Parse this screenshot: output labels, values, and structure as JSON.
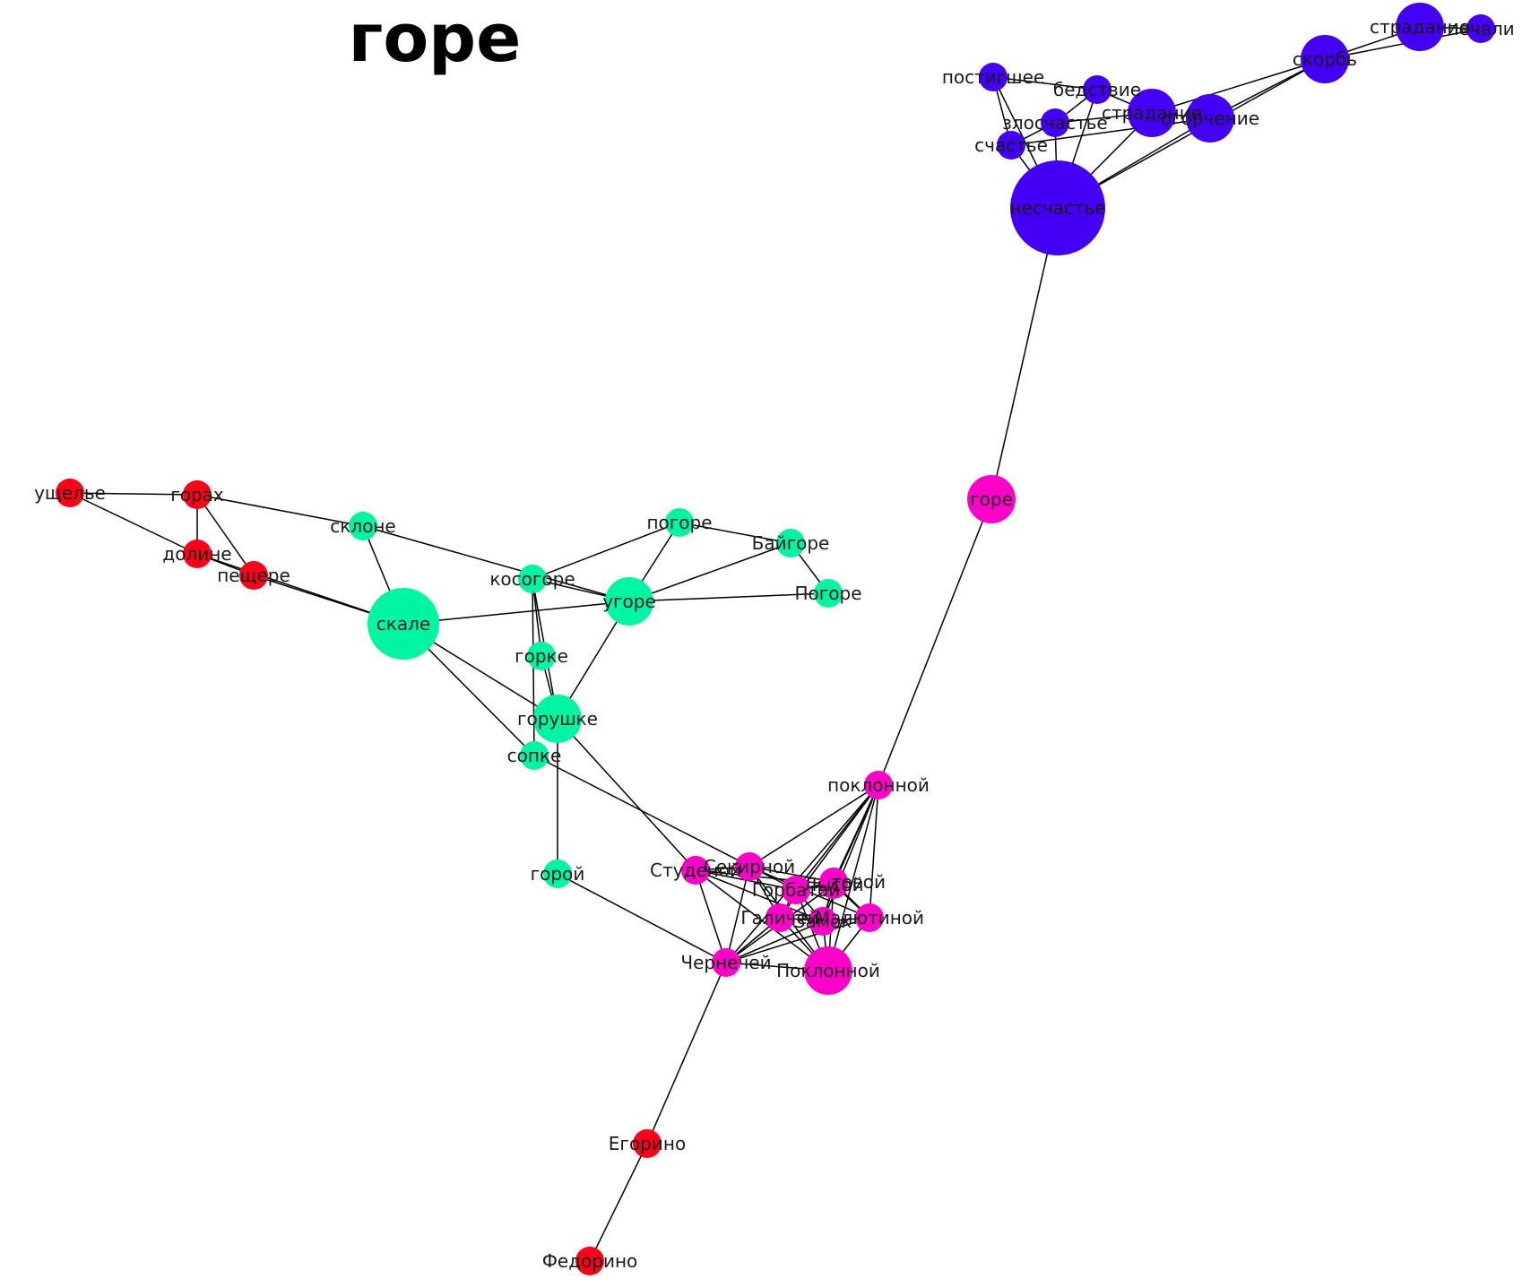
{
  "title": "горе",
  "colors": {
    "purple": "#4400f5",
    "magenta": "#ff00c8",
    "green": "#00f5a3",
    "red": "#ff0018",
    "edge": "#000000"
  },
  "nodes": [
    {
      "id": "nes",
      "label": "несчастье",
      "group": "purple",
      "size": "xl"
    },
    {
      "id": "skorb",
      "label": "скорбь",
      "group": "purple",
      "size": "m"
    },
    {
      "id": "stradanie1",
      "label": "страдание",
      "group": "purple",
      "size": "m"
    },
    {
      "id": "pechali",
      "label": "печали",
      "group": "purple",
      "size": "s"
    },
    {
      "id": "postigshee",
      "label": "постигшее",
      "group": "purple",
      "size": "s"
    },
    {
      "id": "bedstvie",
      "label": "бедствие",
      "group": "purple",
      "size": "s"
    },
    {
      "id": "stradanie2",
      "label": "страдание",
      "group": "purple",
      "size": "m"
    },
    {
      "id": "ogorchenie",
      "label": "огорчение",
      "group": "purple",
      "size": "m"
    },
    {
      "id": "zloschastie",
      "label": "злосчастье",
      "group": "purple",
      "size": "s"
    },
    {
      "id": "schastie",
      "label": "счастье",
      "group": "purple",
      "size": "s"
    },
    {
      "id": "gore",
      "label": "горе",
      "group": "magenta",
      "size": "m"
    },
    {
      "id": "poklonnoy1",
      "label": "поклонной",
      "group": "magenta",
      "size": "s"
    },
    {
      "id": "studenoy",
      "label": "Студеной",
      "group": "magenta",
      "size": "s"
    },
    {
      "id": "sekirnoy",
      "label": "Секирной",
      "group": "magenta",
      "size": "s"
    },
    {
      "id": "gorbatoy",
      "label": "Горбатой",
      "group": "magenta",
      "size": "s"
    },
    {
      "id": "lysoy",
      "label": "Лысой",
      "group": "magenta",
      "size": "s"
    },
    {
      "id": "tovoy",
      "label": "...товой",
      "group": "magenta",
      "size": "s"
    },
    {
      "id": "galich",
      "label": "Галичей",
      "group": "magenta",
      "size": "s"
    },
    {
      "id": "zamok",
      "label": "Замок",
      "group": "magenta",
      "size": "s"
    },
    {
      "id": "malyutinoy",
      "label": "Малютиной",
      "group": "magenta",
      "size": "s"
    },
    {
      "id": "chernechey",
      "label": "Чернечей",
      "group": "magenta",
      "size": "s"
    },
    {
      "id": "poklonnoy2",
      "label": "Поклонной",
      "group": "magenta",
      "size": "m"
    },
    {
      "id": "ushchelie",
      "label": "ущелье",
      "group": "red",
      "size": "s"
    },
    {
      "id": "gorah",
      "label": "горах",
      "group": "red",
      "size": "s"
    },
    {
      "id": "doline",
      "label": "долине",
      "group": "red",
      "size": "s"
    },
    {
      "id": "peshchere",
      "label": "пещере",
      "group": "red",
      "size": "s"
    },
    {
      "id": "egorino",
      "label": "Егорино",
      "group": "red",
      "size": "s"
    },
    {
      "id": "fedorino",
      "label": "Федорино",
      "group": "red",
      "size": "s"
    },
    {
      "id": "sklone",
      "label": "склоне",
      "group": "green",
      "size": "s"
    },
    {
      "id": "skale",
      "label": "скале",
      "group": "green",
      "size": "l"
    },
    {
      "id": "kosogore",
      "label": "косогоре",
      "group": "green",
      "size": "s"
    },
    {
      "id": "pogore",
      "label": "погоре",
      "group": "green",
      "size": "s"
    },
    {
      "id": "baygore",
      "label": "Байгоре",
      "group": "green",
      "size": "s"
    },
    {
      "id": "ugore",
      "label": "угоре",
      "group": "green",
      "size": "m"
    },
    {
      "id": "pogore2",
      "label": "Погоре",
      "group": "green",
      "size": "s"
    },
    {
      "id": "gorke",
      "label": "горке",
      "group": "green",
      "size": "s"
    },
    {
      "id": "gorushke",
      "label": "горушке",
      "group": "green",
      "size": "m"
    },
    {
      "id": "sopke",
      "label": "сопке",
      "group": "green",
      "size": "s"
    },
    {
      "id": "goroy",
      "label": "горой",
      "group": "green",
      "size": "s"
    }
  ],
  "edges": [
    [
      "nes",
      "gore"
    ],
    [
      "nes",
      "skorb"
    ],
    [
      "nes",
      "stradanie2"
    ],
    [
      "nes",
      "ogorchenie"
    ],
    [
      "nes",
      "postigshee"
    ],
    [
      "nes",
      "bedstvie"
    ],
    [
      "nes",
      "zloschastie"
    ],
    [
      "nes",
      "schastie"
    ],
    [
      "skorb",
      "stradanie1"
    ],
    [
      "skorb",
      "pechali"
    ],
    [
      "stradanie1",
      "pechali"
    ],
    [
      "skorb",
      "ogorchenie"
    ],
    [
      "skorb",
      "stradanie2"
    ],
    [
      "postigshee",
      "bedstvie"
    ],
    [
      "postigshee",
      "schastie"
    ],
    [
      "bedstvie",
      "stradanie2"
    ],
    [
      "bedstvie",
      "zloschastie"
    ],
    [
      "zloschastie",
      "schastie"
    ],
    [
      "zloschastie",
      "stradanie2"
    ],
    [
      "stradanie2",
      "ogorchenie"
    ],
    [
      "schastie",
      "ogorchenie"
    ],
    [
      "gore",
      "poklonnoy1"
    ],
    [
      "poklonnoy1",
      "sekirnoy"
    ],
    [
      "poklonnoy1",
      "gorbatoy"
    ],
    [
      "poklonnoy1",
      "lysoy"
    ],
    [
      "poklonnoy1",
      "tovoy"
    ],
    [
      "poklonnoy1",
      "galich"
    ],
    [
      "poklonnoy1",
      "zamok"
    ],
    [
      "poklonnoy1",
      "malyutinoy"
    ],
    [
      "poklonnoy1",
      "chernechey"
    ],
    [
      "poklonnoy1",
      "poklonnoy2"
    ],
    [
      "studenoy",
      "sekirnoy"
    ],
    [
      "studenoy",
      "gorbatoy"
    ],
    [
      "studenoy",
      "lysoy"
    ],
    [
      "studenoy",
      "zamok"
    ],
    [
      "studenoy",
      "chernechey"
    ],
    [
      "studenoy",
      "poklonnoy2"
    ],
    [
      "sekirnoy",
      "tovoy"
    ],
    [
      "sekirnoy",
      "malyutinoy"
    ],
    [
      "sekirnoy",
      "galich"
    ],
    [
      "sekirnoy",
      "chernechey"
    ],
    [
      "sekirnoy",
      "poklonnoy2"
    ],
    [
      "gorbatoy",
      "lysoy"
    ],
    [
      "gorbatoy",
      "tovoy"
    ],
    [
      "gorbatoy",
      "zamok"
    ],
    [
      "gorbatoy",
      "galich"
    ],
    [
      "gorbatoy",
      "poklonnoy2"
    ],
    [
      "lysoy",
      "tovoy"
    ],
    [
      "lysoy",
      "zamok"
    ],
    [
      "lysoy",
      "malyutinoy"
    ],
    [
      "lysoy",
      "poklonnoy2"
    ],
    [
      "lysoy",
      "chernechey"
    ],
    [
      "tovoy",
      "zamok"
    ],
    [
      "tovoy",
      "malyutinoy"
    ],
    [
      "galich",
      "zamok"
    ],
    [
      "galich",
      "chernechey"
    ],
    [
      "galich",
      "poklonnoy2"
    ],
    [
      "zamok",
      "malyutinoy"
    ],
    [
      "zamok",
      "poklonnoy2"
    ],
    [
      "zamok",
      "chernechey"
    ],
    [
      "malyutinoy",
      "poklonnoy2"
    ],
    [
      "malyutinoy",
      "chernechey"
    ],
    [
      "chernechey",
      "poklonnoy2"
    ],
    [
      "chernechey",
      "egorino"
    ],
    [
      "egorino",
      "fedorino"
    ],
    [
      "ushchelie",
      "gorah"
    ],
    [
      "ushchelie",
      "doline"
    ],
    [
      "gorah",
      "doline"
    ],
    [
      "gorah",
      "peshchere"
    ],
    [
      "doline",
      "peshchere"
    ],
    [
      "gorah",
      "sklone"
    ],
    [
      "peshchere",
      "skale"
    ],
    [
      "doline",
      "skale"
    ],
    [
      "sklone",
      "skale"
    ],
    [
      "sklone",
      "ugore"
    ],
    [
      "skale",
      "ugore"
    ],
    [
      "skale",
      "gorushke"
    ],
    [
      "skale",
      "sopke"
    ],
    [
      "kosogore",
      "pogore"
    ],
    [
      "kosogore",
      "gorke"
    ],
    [
      "kosogore",
      "gorushke"
    ],
    [
      "kosogore",
      "ugore"
    ],
    [
      "kosogore",
      "sopke"
    ],
    [
      "pogore",
      "baygore"
    ],
    [
      "pogore",
      "ugore"
    ],
    [
      "ugore",
      "baygore"
    ],
    [
      "ugore",
      "pogore2"
    ],
    [
      "baygore",
      "pogore2"
    ],
    [
      "ugore",
      "gorushke"
    ],
    [
      "gorke",
      "gorushke"
    ],
    [
      "gorushke",
      "goroy"
    ],
    [
      "gorushke",
      "studenoy"
    ],
    [
      "sopke",
      "gorbatoy"
    ],
    [
      "goroy",
      "chernechey"
    ]
  ]
}
